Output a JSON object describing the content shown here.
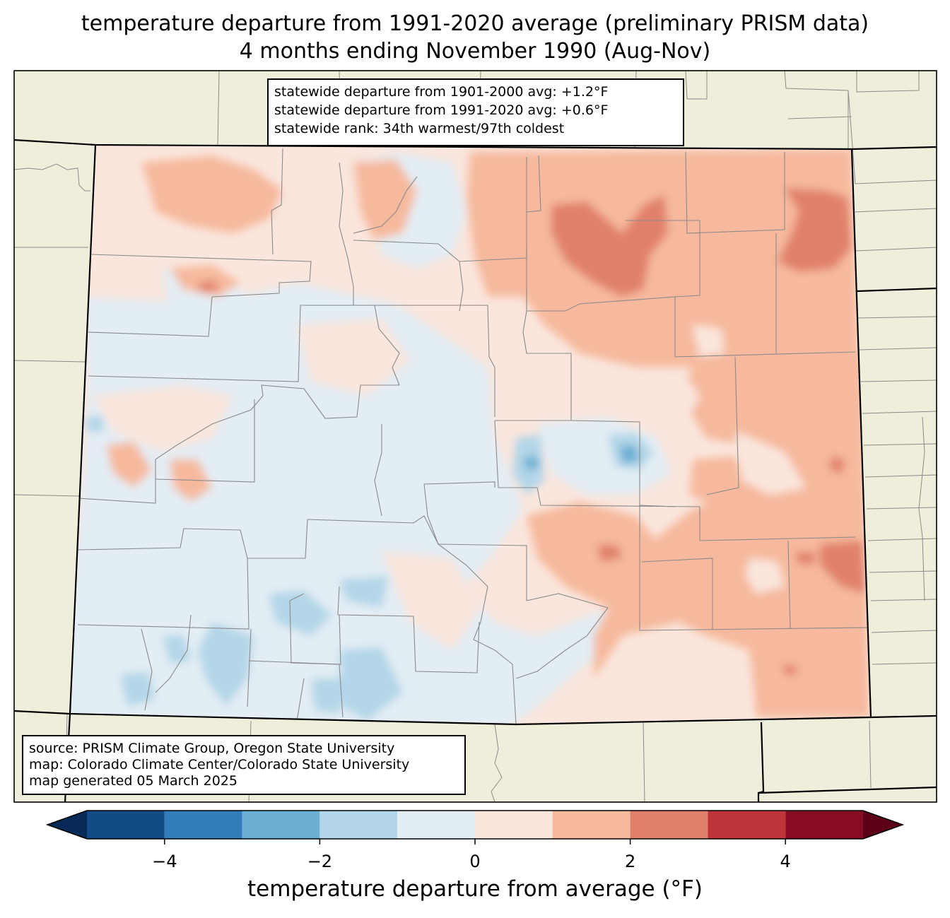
{
  "title": {
    "line1": "temperature departure from 1991-2020 average (preliminary PRISM data)",
    "line2": "4 months ending November 1990 (Aug-Nov)"
  },
  "stats": {
    "line1": "statewide departure from 1901-2000 avg: +1.2°F",
    "line2": "statewide departure from 1991-2020 avg: +0.6°F",
    "line3": "statewide rank: 34th warmest/97th coldest"
  },
  "source": {
    "line1": "source: PRISM Climate Group, Oregon State University",
    "line2": "map: Colorado Climate Center/Colorado State University",
    "line3": "map generated 05 March 2025"
  },
  "colorbar": {
    "label": "temperature departure from average (°F)",
    "ticks": [
      "−4",
      "−2",
      "0",
      "2",
      "4"
    ],
    "tick_values": [
      -4,
      -2,
      0,
      2,
      4
    ],
    "range": [
      -5,
      5
    ],
    "bins": [
      {
        "min": -5,
        "max": -4,
        "color": "#134b87"
      },
      {
        "min": -4,
        "max": -3,
        "color": "#317cb9"
      },
      {
        "min": -3,
        "max": -2,
        "color": "#6aaed3"
      },
      {
        "min": -2,
        "max": -1,
        "color": "#b2d6e8"
      },
      {
        "min": -1,
        "max": 0,
        "color": "#e3edf4"
      },
      {
        "min": 0,
        "max": 1,
        "color": "#fae6dd"
      },
      {
        "min": 1,
        "max": 2,
        "color": "#f6b99d"
      },
      {
        "min": 2,
        "max": 3,
        "color": "#e0806a"
      },
      {
        "min": 3,
        "max": 4,
        "color": "#be3539"
      },
      {
        "min": 4,
        "max": 5,
        "color": "#870b23"
      }
    ],
    "under_color": "#082a5a",
    "over_color": "#5c0018"
  },
  "colors": {
    "land_background": "#efeedb",
    "county_lines": "#8a8a8a",
    "state_lines": "#000000"
  }
}
